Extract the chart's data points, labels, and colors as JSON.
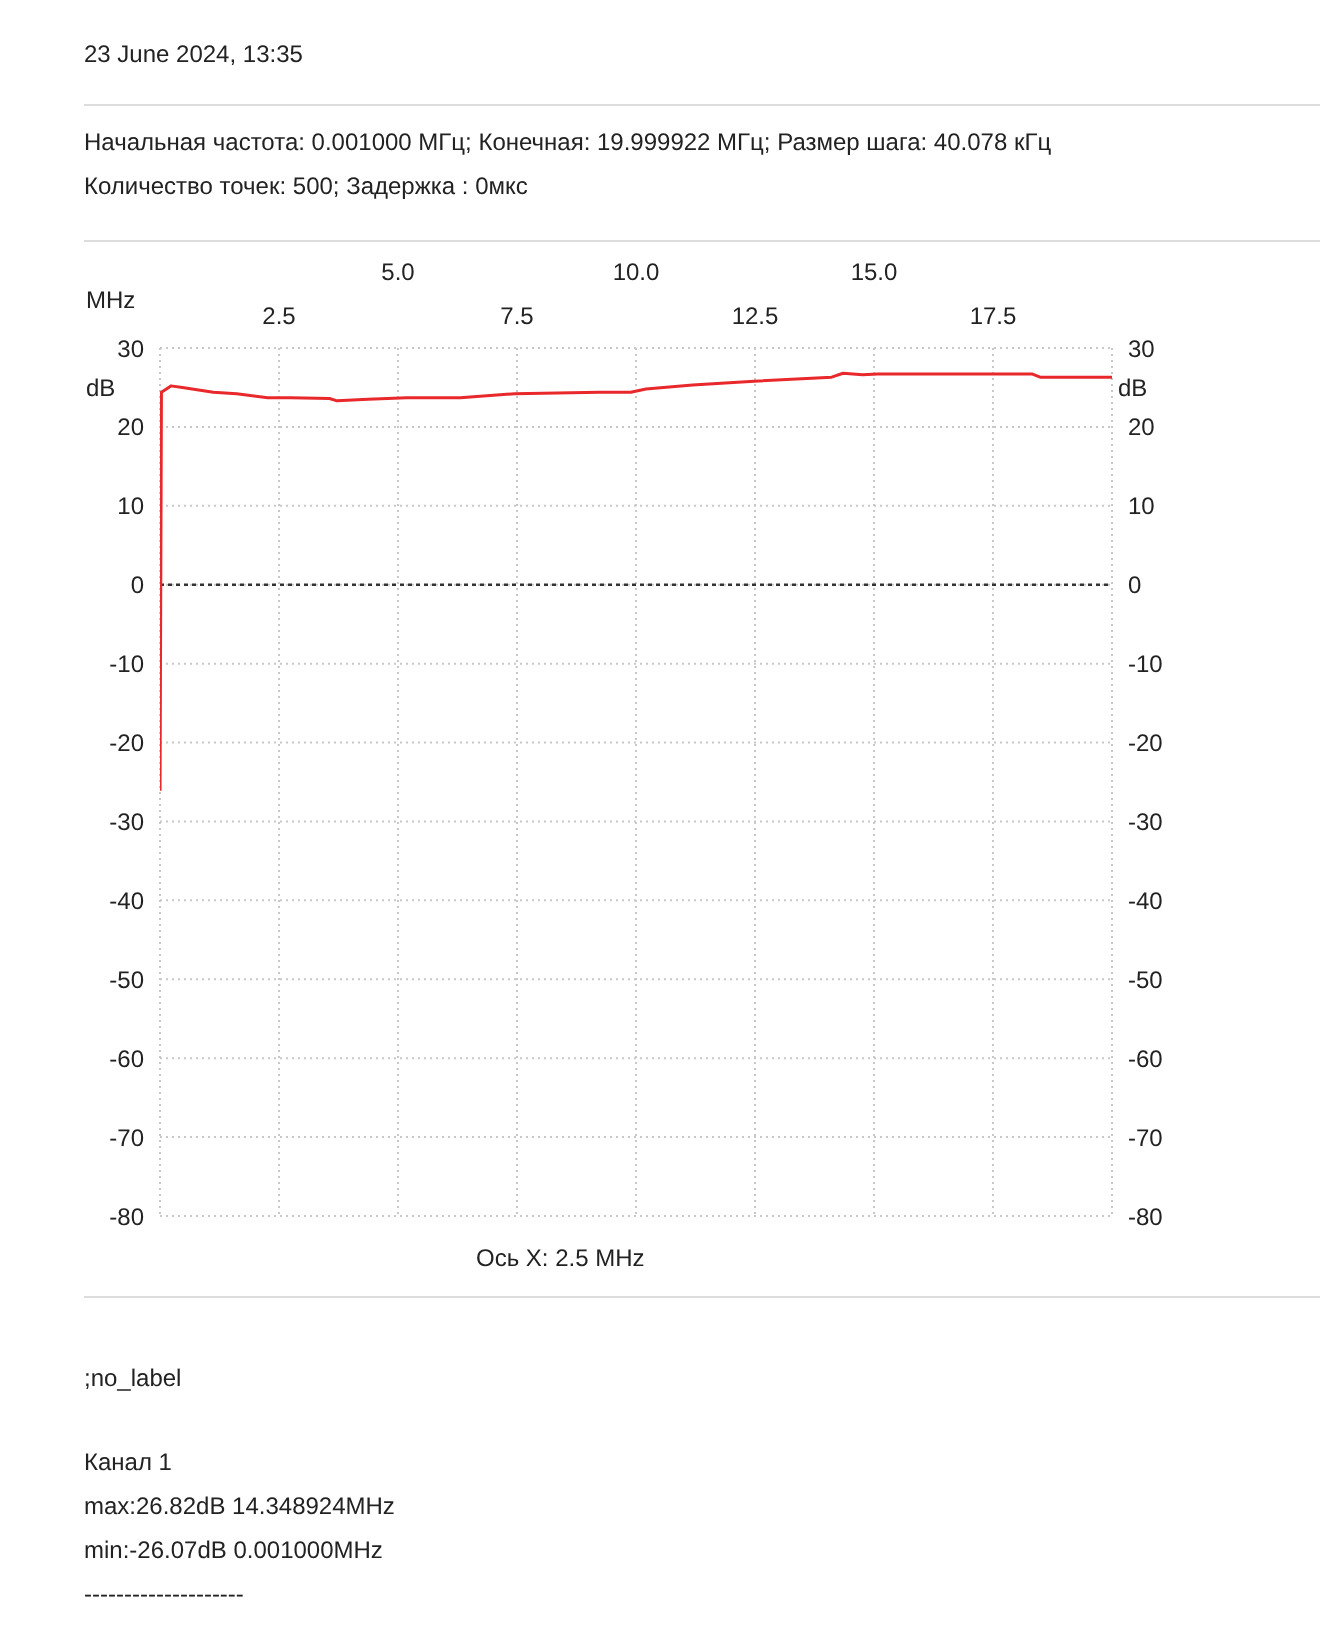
{
  "chart_data": {
    "type": "line",
    "title": "23 June 2024, 13:35",
    "subtitle": "Начальная частота: 0.001000 МГц; Конечная: 19.999922 МГц; Размер шага: 40.078 кГц\nКоличество точек:  500; Задержка :   0мкс",
    "xlabel": "MHz",
    "ylabel": "dB",
    "y2label": "dB",
    "annotations": [
      "Ось X: 2.5 MHz",
      ";no_label",
      "Канал 1",
      "max:26.82dB 14.348924MHz",
      "min:-26.07dB 0.001000MHz",
      "--------------------"
    ],
    "x": [
      0.001,
      0.03,
      0.23,
      0.47,
      1.12,
      1.61,
      2.26,
      2.74,
      3.56,
      3.72,
      4.37,
      5.18,
      6.31,
      7.45,
      9.24,
      9.89,
      10.21,
      11.19,
      12.48,
      14.11,
      14.35,
      14.76,
      15.08,
      15.73,
      17.35,
      18.33,
      18.49,
      20.0
    ],
    "series": [
      {
        "color": "#e8282b",
        "values": [
          -26.1,
          24.4,
          25.2,
          25.0,
          24.4,
          24.2,
          23.7,
          23.7,
          23.6,
          23.3,
          23.5,
          23.7,
          23.7,
          24.2,
          24.4,
          24.4,
          24.8,
          25.3,
          25.8,
          26.3,
          26.8,
          26.6,
          26.7,
          26.7,
          26.7,
          26.7,
          26.3,
          26.3
        ]
      }
    ],
    "xlim": [
      0,
      20
    ],
    "xticks": [
      {
        "value": 0,
        "label": null
      },
      2.5,
      7.5,
      12.5,
      17.5,
      {
        "value": 20,
        "label": null
      }
    ],
    "x2lim": [
      0,
      20
    ],
    "x2ticks": [
      {
        "value": 5,
        "label": "5.0"
      },
      {
        "value": 10,
        "label": "10.0"
      },
      {
        "value": 15,
        "label": "15.0"
      }
    ],
    "ylim": [
      -80,
      30
    ],
    "yticks": [
      -80,
      -70,
      -60,
      -50,
      -40,
      -30,
      -20,
      -10,
      0,
      10,
      20,
      30
    ],
    "y2lim": [
      -80,
      30
    ],
    "y2ticks": [
      -80,
      -70,
      -60,
      -50,
      -40,
      -30,
      -20,
      -10,
      0,
      10,
      20,
      30
    ],
    "ref_lines": [
      {
        "axis": "y",
        "value": 0,
        "color": "#333333",
        "line_style": "dotted"
      }
    ],
    "grid": true,
    "marker": "none",
    "line_style": "solid"
  }
}
